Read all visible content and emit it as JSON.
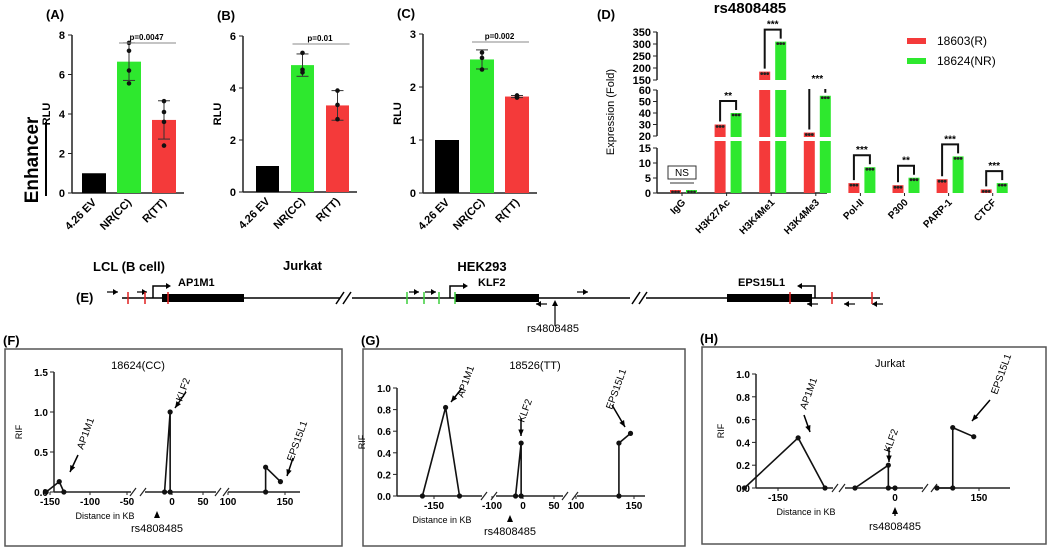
{
  "colors": {
    "black": "#000000",
    "green": "#2ee82e",
    "red": "#f43a3a",
    "frame": "#555555",
    "axis": "#222222"
  },
  "chart_data": [
    {
      "panel": "(A)",
      "type": "bar",
      "title": "",
      "side_label": "Enhancer",
      "xlabel": "LCL (B cell)",
      "ylabel": "RLU",
      "ylim": [
        0,
        8
      ],
      "yticks": [
        0,
        2,
        4,
        6,
        8
      ],
      "categories": [
        "4.26 EV",
        "NR(CC)",
        "R(TT)"
      ],
      "values": [
        1.0,
        6.65,
        3.7
      ],
      "errors": [
        0,
        0.95,
        0.97
      ],
      "points": [
        [],
        [
          7.6,
          7.2,
          6.2,
          5.55
        ],
        [
          4.65,
          4.1,
          3.6,
          2.4
        ]
      ],
      "pvalue": {
        "label": "p=0.0047",
        "between": [
          1,
          2
        ]
      }
    },
    {
      "panel": "(B)",
      "type": "bar",
      "title": "",
      "xlabel": "Jurkat",
      "ylabel": "RLU",
      "ylim": [
        0,
        6
      ],
      "yticks": [
        0,
        2,
        4,
        6
      ],
      "categories": [
        "4.26 EV",
        "NR(CC)",
        "R(TT)"
      ],
      "values": [
        1.0,
        4.88,
        3.33
      ],
      "errors": [
        0,
        0.43,
        0.57
      ],
      "points": [
        [],
        [
          5.35,
          4.7,
          4.6
        ],
        [
          3.9,
          3.35,
          2.8
        ]
      ],
      "pvalue": {
        "label": "p=0.01",
        "between": [
          1,
          2
        ]
      }
    },
    {
      "panel": "(C)",
      "type": "bar",
      "title": "",
      "xlabel": "HEK293",
      "ylabel": "RLU",
      "ylim": [
        0,
        3
      ],
      "yticks": [
        0,
        1,
        2,
        3
      ],
      "categories": [
        "4.26 EV",
        "NR(CC)",
        "R(TT)"
      ],
      "values": [
        1.0,
        2.52,
        1.82
      ],
      "errors": [
        0,
        0.18,
        0.02
      ],
      "points": [
        [],
        [
          2.65,
          2.55,
          2.33
        ],
        [
          1.8,
          1.84,
          1.82
        ]
      ],
      "pvalue": {
        "label": "p=0.002",
        "between": [
          1,
          2
        ]
      }
    },
    {
      "panel": "(D)",
      "type": "bar",
      "title": "rs4808485",
      "xlabel": "",
      "ylabel": "Expression (Fold)",
      "broken_axis": {
        "segments": [
          [
            0,
            15
          ],
          [
            20,
            60
          ],
          [
            150,
            350
          ]
        ]
      },
      "yticks": [
        0,
        5,
        10,
        15,
        20,
        30,
        40,
        50,
        60,
        150,
        200,
        250,
        300,
        350
      ],
      "categories": [
        "IgG",
        "H3K27Ac",
        "H3K4Me1",
        "H3K4Me3",
        "Pol-II",
        "P300",
        "PARP-1",
        "CTCF"
      ],
      "series": [
        {
          "name": "18603(R)",
          "color": "#f43a3a",
          "values": [
            1.0,
            30,
            185,
            23,
            3.3,
            2.6,
            4.6,
            1.2
          ]
        },
        {
          "name": "18624(NR)",
          "color": "#2ee82e",
          "values": [
            1.0,
            40,
            310,
            55,
            8.6,
            5.1,
            12.2,
            3.3
          ]
        }
      ],
      "significance": [
        "NS",
        "**",
        "***",
        "***",
        "***",
        "**",
        "***",
        "***"
      ],
      "legend": "top-right"
    },
    {
      "panel": "(F)",
      "type": "line",
      "title": "18624(CC)",
      "xlabel": "Distance in KB",
      "ylabel": "RIF",
      "ylim": [
        0,
        1.5
      ],
      "yticks": [
        "0.0",
        "0.5",
        "1.0",
        "1.5"
      ],
      "xticks": [
        "-150",
        "-100",
        "-50",
        "0",
        "50",
        "100",
        "150"
      ],
      "snp_label": "rs4808485",
      "segments": [
        {
          "x": [
            -155,
            -138,
            -132
          ],
          "y": [
            0,
            0.13,
            0
          ]
        },
        {
          "x": [
            -12,
            -3,
            -3
          ],
          "y": [
            0,
            1.0,
            0
          ]
        },
        {
          "x": [
            133,
            133,
            146
          ],
          "y": [
            0,
            0.31,
            0.13
          ]
        }
      ],
      "annotations": [
        "AP1M1",
        "KLF2",
        "EPS15L1"
      ]
    },
    {
      "panel": "(G)",
      "type": "line",
      "title": "18526(TT)",
      "xlabel": "Distance in KB",
      "ylabel": "RIF",
      "ylim": [
        0,
        1.0
      ],
      "yticks": [
        "0.0",
        "0.2",
        "0.4",
        "0.6",
        "0.8",
        "1.0"
      ],
      "xticks": [
        "-150",
        "-100",
        "0",
        "50",
        "100",
        "150"
      ],
      "snp_label": "rs4808485",
      "segments": [
        {
          "x": [
            -160,
            -140,
            -128
          ],
          "y": [
            0,
            0.82,
            0
          ]
        },
        {
          "x": [
            -12,
            -3,
            -3
          ],
          "y": [
            0,
            0.49,
            0
          ]
        },
        {
          "x": [
            137,
            137,
            147
          ],
          "y": [
            0,
            0.49,
            0.58
          ]
        }
      ],
      "annotations": [
        "AP1M1",
        "KLF2",
        "EPS15L1"
      ]
    },
    {
      "panel": "(H)",
      "type": "line",
      "title": "Jurkat",
      "xlabel": "Distance in KB",
      "ylabel": "RIF",
      "ylim": [
        0,
        1.0
      ],
      "yticks": [
        "0.0",
        "0.2",
        "0.4",
        "0.6",
        "0.8",
        "1.0"
      ],
      "xticks": [
        "-150",
        "0",
        "150"
      ],
      "snp_label": "rs4808485",
      "segments": [
        {
          "x": [
            -200,
            -120,
            -80
          ],
          "y": [
            0,
            0.44,
            0
          ]
        },
        {
          "x": [
            -60,
            -10,
            -10,
            0
          ],
          "y": [
            0,
            0.2,
            0,
            0
          ]
        },
        {
          "x": [
            70,
            100,
            100,
            140
          ],
          "y": [
            0,
            0,
            0.53,
            0.45
          ]
        }
      ],
      "annotations": [
        "AP1M1",
        "KLF2",
        "EPS15L1"
      ]
    }
  ],
  "gene_map": {
    "panel": "(E)",
    "genes": [
      "AP1M1",
      "KLF2",
      "EPS15L1"
    ],
    "snp_label": "rs4808485"
  },
  "panel_labels": {
    "F": "(F)",
    "G": "(G)",
    "H": "(H)",
    "E": "(E)"
  }
}
